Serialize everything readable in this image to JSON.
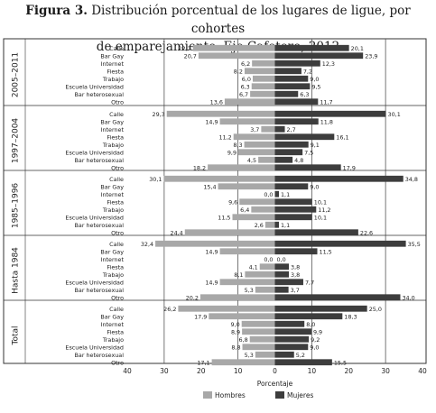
{
  "header": {
    "figure_label": "Figura 3.",
    "title_line1": "Distribución porcentual de los lugares de ligue, por cohortes",
    "title_line2": "de emparejamiento. Eje Cafetero, 2012"
  },
  "colors": {
    "hombres": "#a8a8a8",
    "mujeres": "#3d3d3d",
    "frame": "#333333",
    "grid": "#555555"
  },
  "chart_data": {
    "type": "bar",
    "orientation": "horizontal",
    "layout": "back-to-back",
    "title": "Distribución porcentual de los lugares de ligue, por cohortes de emparejamiento. Eje Cafetero, 2012",
    "xlabel": "Porcentaje",
    "xlim": [
      -40,
      40
    ],
    "xticks": [
      {
        "value": -40,
        "label": "40"
      },
      {
        "value": -30,
        "label": "30"
      },
      {
        "value": -20,
        "label": "20"
      },
      {
        "value": -10,
        "label": "10"
      },
      {
        "value": 0,
        "label": "0"
      },
      {
        "value": 10,
        "label": "10"
      },
      {
        "value": 20,
        "label": "20"
      },
      {
        "value": 30,
        "label": "30"
      },
      {
        "value": 40,
        "label": "40"
      }
    ],
    "grid": "vertical lines at -30, -10, 0, 10, 30",
    "legend": {
      "position": "bottom",
      "items": [
        {
          "name": "Hombres",
          "side": "left"
        },
        {
          "name": "Mujeres",
          "side": "right"
        }
      ]
    },
    "categories": [
      "Calle",
      "Bar Gay",
      "Internet",
      "Fiesta",
      "Trabajo",
      "Escuela Universidad",
      "Bar heterosexual",
      "Otro"
    ],
    "groups": [
      {
        "name": "2005–2011",
        "hombres": [
          22.2,
          20.7,
          6.2,
          8.2,
          6.0,
          6.3,
          6.7,
          13.6
        ],
        "hombres_labels": [
          "22,2",
          "20,7",
          "6,2",
          "8,2",
          "6,0",
          "6,3",
          "6,7",
          "13,6"
        ],
        "mujeres": [
          20.1,
          23.9,
          12.3,
          7.2,
          9.0,
          9.5,
          6.3,
          11.7
        ],
        "mujeres_labels": [
          "20,1",
          "23,9",
          "12,3",
          "7,2",
          "9,0",
          "9,5",
          "6,3",
          "11,7"
        ]
      },
      {
        "name": "1997–2004",
        "hombres": [
          29.3,
          14.9,
          3.7,
          11.2,
          8.3,
          9.9,
          4.5,
          18.2
        ],
        "hombres_labels": [
          "29,3",
          "14,9",
          "3,7",
          "11,2",
          "8,3",
          "9,9",
          "4,5",
          "18,2"
        ],
        "mujeres": [
          30.1,
          11.8,
          2.7,
          16.1,
          9.1,
          7.5,
          4.8,
          17.9
        ],
        "mujeres_labels": [
          "30,1",
          "11,8",
          "2,7",
          "16,1",
          "9,1",
          "7,5",
          "4,8",
          "17,9"
        ]
      },
      {
        "name": "1985–1996",
        "hombres": [
          30.1,
          15.4,
          0.0,
          9.6,
          6.4,
          11.5,
          2.6,
          24.4
        ],
        "hombres_labels": [
          "30,1",
          "15,4",
          "0,0",
          "9,6",
          "6,4",
          "11,5",
          "2,6",
          "24,4"
        ],
        "mujeres": [
          34.8,
          9.0,
          1.1,
          10.1,
          11.2,
          10.1,
          1.1,
          22.6
        ],
        "mujeres_labels": [
          "34,8",
          "9,0",
          "1,1",
          "10,1",
          "11,2",
          "10,1",
          "1,1",
          "22,6"
        ]
      },
      {
        "name": "Hasta 1984",
        "hombres": [
          32.4,
          14.9,
          0.0,
          4.1,
          8.1,
          14.9,
          5.3,
          20.2
        ],
        "hombres_labels": [
          "32,4",
          "14,9",
          "0,0",
          "4,1",
          "8,1",
          "14,9",
          "5,3",
          "20,2"
        ],
        "mujeres": [
          35.5,
          11.5,
          0.0,
          3.8,
          3.8,
          7.7,
          3.7,
          34.0
        ],
        "mujeres_labels": [
          "35,5",
          "11,5",
          "0,0",
          "3,8",
          "3,8",
          "7,7",
          "3,7",
          "34,0"
        ]
      },
      {
        "name": "Total",
        "hombres": [
          26.2,
          17.9,
          9.0,
          8.9,
          6.8,
          8.8,
          5.3,
          17.1
        ],
        "hombres_labels": [
          "26,2",
          "17,9",
          "9,0",
          "8,9",
          "6,8",
          "8,8",
          "5,3",
          "17,1"
        ],
        "mujeres": [
          25.0,
          18.3,
          8.0,
          9.9,
          9.2,
          9.0,
          5.2,
          15.5
        ],
        "mujeres_labels": [
          "25,0",
          "18,3",
          "8,0",
          "9,9",
          "9,2",
          "9,0",
          "5,2",
          "15,5"
        ]
      }
    ]
  }
}
